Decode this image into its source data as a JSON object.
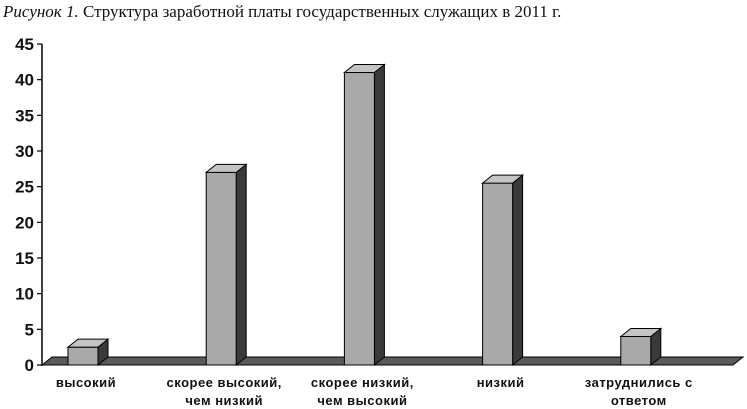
{
  "caption": {
    "figure_label": "Рисунок 1.",
    "text": "Структура заработной платы государственных служащих в 2011 г."
  },
  "colors": {
    "bar_front": "#a9a9a9",
    "bar_top": "#c4c4c4",
    "bar_side": "#3a3a3a",
    "floor": "#5a5a5a",
    "axis": "#000000"
  },
  "chart_data": {
    "type": "bar",
    "title": "",
    "xlabel": "",
    "ylabel": "",
    "categories": [
      [
        "высокий"
      ],
      [
        "скорее высокий,",
        "чем низкий"
      ],
      [
        "скорее низкий,",
        "чем высокий"
      ],
      [
        "низкий"
      ],
      [
        "затруднились с",
        "ответом"
      ]
    ],
    "values": [
      2.5,
      27,
      41,
      25.5,
      4
    ],
    "ylim": [
      0,
      45
    ],
    "yticks": [
      "0",
      "5",
      "10",
      "15",
      "20",
      "25",
      "30",
      "35",
      "40",
      "45"
    ],
    "grid": false,
    "legend": false,
    "style": "3d"
  }
}
